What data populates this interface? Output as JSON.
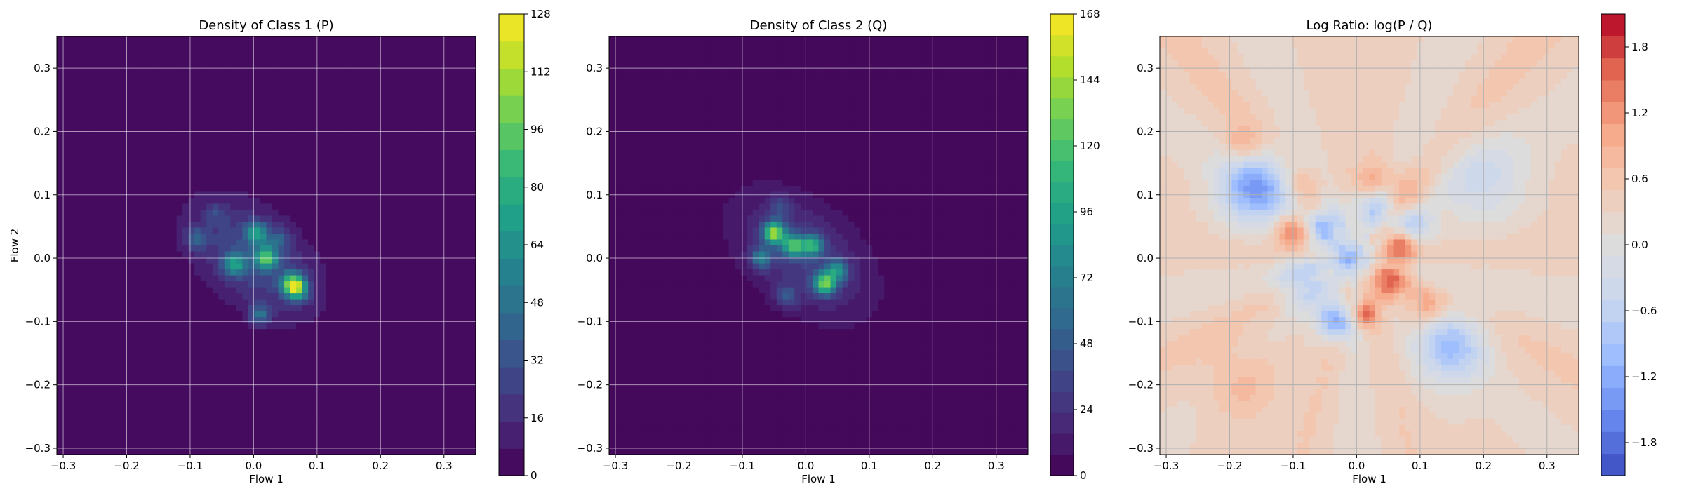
{
  "chart_data": [
    {
      "type": "heatmap",
      "title": "Density of Class 1 (P)",
      "xlabel": "Flow 1",
      "ylabel": "Flow 2",
      "xlim": [
        -0.31,
        0.35
      ],
      "ylim": [
        -0.31,
        0.35
      ],
      "xticks": [
        -0.3,
        -0.2,
        -0.1,
        0.0,
        0.1,
        0.2,
        0.3
      ],
      "xtick_labels": [
        "−0.3",
        "−0.2",
        "−0.1",
        "0.0",
        "0.1",
        "0.2",
        "0.3"
      ],
      "yticks": [
        -0.3,
        -0.2,
        -0.1,
        0.0,
        0.1,
        0.2,
        0.3
      ],
      "ytick_labels": [
        "−0.3",
        "−0.2",
        "−0.1",
        "0.0",
        "0.1",
        "0.2",
        "0.3"
      ],
      "grid": true,
      "colormap": "viridis",
      "levels": 17,
      "colorbar": {
        "min": 0,
        "max": 128,
        "ticks": [
          0,
          16,
          32,
          48,
          64,
          80,
          96,
          112,
          128
        ],
        "tick_labels": [
          "0",
          "16",
          "32",
          "48",
          "64",
          "80",
          "96",
          "112",
          "128"
        ]
      },
      "blob": {
        "cx": 0.0,
        "cy": 0.0,
        "sx": 0.085,
        "sy": 0.05,
        "angle_deg": -40
      },
      "peaks": [
        {
          "x": 0.005,
          "y": 0.04,
          "value": 80
        },
        {
          "x": -0.03,
          "y": -0.01,
          "value": 78
        },
        {
          "x": 0.02,
          "y": 0.0,
          "value": 96
        },
        {
          "x": 0.06,
          "y": -0.04,
          "value": 100
        },
        {
          "x": 0.07,
          "y": -0.05,
          "value": 90
        },
        {
          "x": 0.01,
          "y": -0.09,
          "value": 64
        },
        {
          "x": -0.09,
          "y": 0.03,
          "value": 56
        },
        {
          "x": -0.06,
          "y": 0.07,
          "value": 40
        },
        {
          "x": 0.04,
          "y": 0.03,
          "value": 48
        }
      ]
    },
    {
      "type": "heatmap",
      "title": "Density of Class 2 (Q)",
      "xlabel": "Flow 1",
      "ylabel": "",
      "xlim": [
        -0.31,
        0.35
      ],
      "ylim": [
        -0.31,
        0.35
      ],
      "xticks": [
        -0.3,
        -0.2,
        -0.1,
        0.0,
        0.1,
        0.2,
        0.3
      ],
      "xtick_labels": [
        "−0.3",
        "−0.2",
        "−0.1",
        "0.0",
        "0.1",
        "0.2",
        "0.3"
      ],
      "yticks": [
        -0.3,
        -0.2,
        -0.1,
        0.0,
        0.1,
        0.2,
        0.3
      ],
      "ytick_labels": [
        "−0.3",
        "−0.2",
        "−0.1",
        "0.0",
        "0.1",
        "0.2",
        "0.3"
      ],
      "grid": true,
      "colormap": "viridis",
      "levels": 22,
      "colorbar": {
        "min": 0,
        "max": 168,
        "ticks": [
          0,
          24,
          48,
          72,
          96,
          120,
          144,
          168
        ],
        "tick_labels": [
          "0",
          "24",
          "48",
          "72",
          "96",
          "120",
          "144",
          "168"
        ]
      },
      "blob": {
        "cx": -0.005,
        "cy": 0.005,
        "sx": 0.09,
        "sy": 0.055,
        "angle_deg": -40
      },
      "peaks": [
        {
          "x": -0.05,
          "y": 0.04,
          "value": 150
        },
        {
          "x": -0.02,
          "y": 0.02,
          "value": 120
        },
        {
          "x": 0.01,
          "y": 0.02,
          "value": 110
        },
        {
          "x": 0.03,
          "y": -0.04,
          "value": 140
        },
        {
          "x": -0.07,
          "y": 0.0,
          "value": 80
        },
        {
          "x": 0.05,
          "y": -0.02,
          "value": 90
        },
        {
          "x": -0.03,
          "y": -0.06,
          "value": 60
        },
        {
          "x": -0.04,
          "y": 0.08,
          "value": 50
        }
      ]
    },
    {
      "type": "heatmap",
      "title": "Log Ratio: log(P / Q)",
      "xlabel": "Flow 1",
      "ylabel": "",
      "xlim": [
        -0.31,
        0.35
      ],
      "ylim": [
        -0.31,
        0.35
      ],
      "xticks": [
        -0.3,
        -0.2,
        -0.1,
        0.0,
        0.1,
        0.2,
        0.3
      ],
      "xtick_labels": [
        "−0.3",
        "−0.2",
        "−0.1",
        "0.0",
        "0.1",
        "0.2",
        "0.3"
      ],
      "yticks": [
        -0.3,
        -0.2,
        -0.1,
        0.0,
        0.1,
        0.2,
        0.3
      ],
      "ytick_labels": [
        "−0.3",
        "−0.2",
        "−0.1",
        "0.0",
        "0.1",
        "0.2",
        "0.3"
      ],
      "grid": true,
      "colormap": "coolwarm",
      "levels": 21,
      "colorbar": {
        "min": -2.1,
        "max": 2.1,
        "ticks": [
          -1.8,
          -1.2,
          -0.6,
          0.0,
          0.6,
          1.2,
          1.8
        ],
        "tick_labels": [
          "−1.8",
          "−1.2",
          "−0.6",
          "0.0",
          "0.6",
          "1.2",
          "1.8"
        ]
      },
      "background_value": 0.35,
      "features": [
        {
          "x": -0.16,
          "y": 0.11,
          "value": -1.3,
          "r": 0.04
        },
        {
          "x": -0.1,
          "y": 0.04,
          "value": 1.5,
          "r": 0.02
        },
        {
          "x": -0.05,
          "y": 0.05,
          "value": -1.1,
          "r": 0.02
        },
        {
          "x": 0.07,
          "y": 0.02,
          "value": 1.7,
          "r": 0.018
        },
        {
          "x": 0.05,
          "y": -0.04,
          "value": 1.6,
          "r": 0.02
        },
        {
          "x": 0.01,
          "y": -0.09,
          "value": 1.7,
          "r": 0.015
        },
        {
          "x": -0.03,
          "y": -0.1,
          "value": -1.3,
          "r": 0.02
        },
        {
          "x": 0.03,
          "y": 0.08,
          "value": -0.9,
          "r": 0.025
        },
        {
          "x": 0.15,
          "y": -0.14,
          "value": -0.9,
          "r": 0.04
        },
        {
          "x": 0.11,
          "y": -0.08,
          "value": 1.1,
          "r": 0.02
        },
        {
          "x": 0.06,
          "y": 0.1,
          "value": 1.0,
          "r": 0.03
        },
        {
          "x": -0.01,
          "y": 0.0,
          "value": -1.0,
          "r": 0.02
        },
        {
          "x": -0.18,
          "y": 0.18,
          "value": 1.0,
          "r": 0.02
        },
        {
          "x": 0.02,
          "y": 0.12,
          "value": 0.9,
          "r": 0.02
        },
        {
          "x": -0.08,
          "y": -0.04,
          "value": -0.7,
          "r": 0.03
        },
        {
          "x": 0.09,
          "y": 0.05,
          "value": -0.8,
          "r": 0.02
        },
        {
          "x": -0.18,
          "y": -0.2,
          "value": 0.8,
          "r": 0.04
        },
        {
          "x": 0.2,
          "y": 0.12,
          "value": -0.3,
          "r": 0.05
        },
        {
          "x": -0.08,
          "y": 0.12,
          "value": 0.8,
          "r": 0.02
        }
      ]
    }
  ],
  "colors": {
    "viridis": [
      "#440154",
      "#482878",
      "#3e4989",
      "#31688e",
      "#26828e",
      "#1f9e89",
      "#35b779",
      "#6ece58",
      "#b5de2b",
      "#fde725"
    ],
    "coolwarm": [
      "#3b4cc0",
      "#6788ee",
      "#9abbff",
      "#c9d7f0",
      "#dddcdc",
      "#f2cbb7",
      "#f7a889",
      "#e26952",
      "#b40426"
    ],
    "grid": "#b0b0b0"
  }
}
